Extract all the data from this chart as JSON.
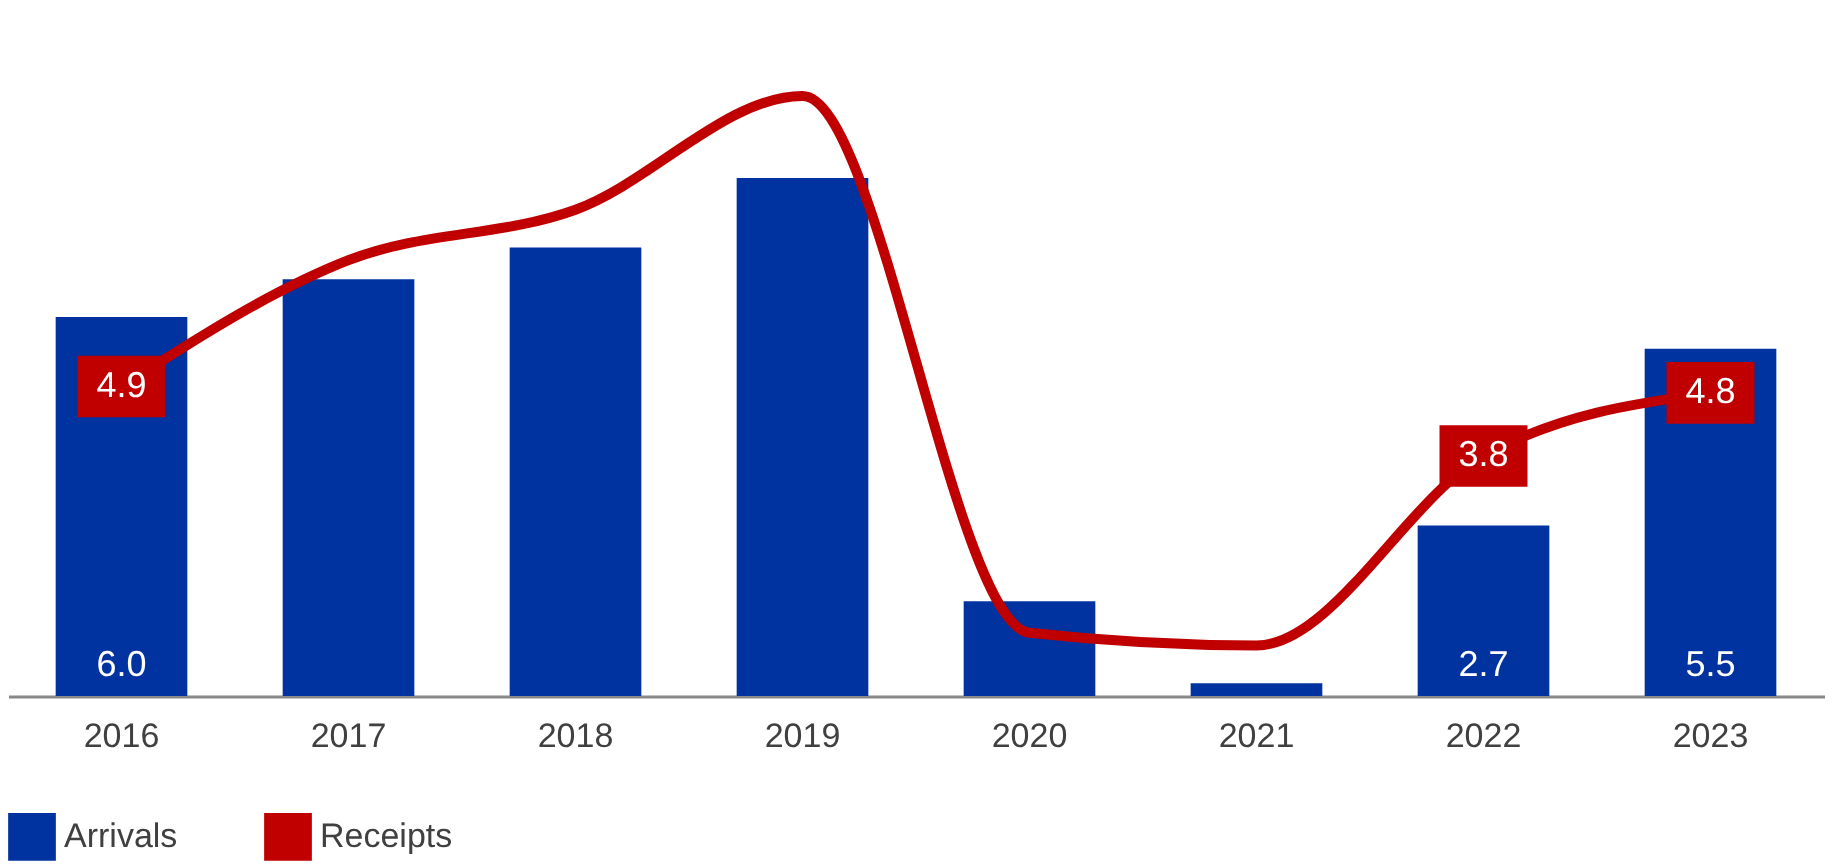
{
  "chart_data": {
    "type": "bar",
    "categories": [
      "2016",
      "2017",
      "2018",
      "2019",
      "2020",
      "2021",
      "2022",
      "2023"
    ],
    "series": [
      {
        "name": "Arrivals",
        "color": "#0033a0",
        "values": [
          6.0,
          6.6,
          7.1,
          8.2,
          1.5,
          0.2,
          2.7,
          5.5
        ],
        "value_labels": [
          "6.0",
          null,
          null,
          null,
          null,
          null,
          "2.7",
          "5.5"
        ]
      },
      {
        "name": "Receipts",
        "type": "line",
        "color": "#c00000",
        "values": [
          4.9,
          6.9,
          7.7,
          9.5,
          1.0,
          0.8,
          3.8,
          4.8
        ],
        "value_labels": [
          "4.9",
          null,
          null,
          null,
          null,
          null,
          "3.8",
          "4.8"
        ]
      }
    ],
    "legend": "bottom",
    "marker": "none",
    "line_style": "solid"
  }
}
